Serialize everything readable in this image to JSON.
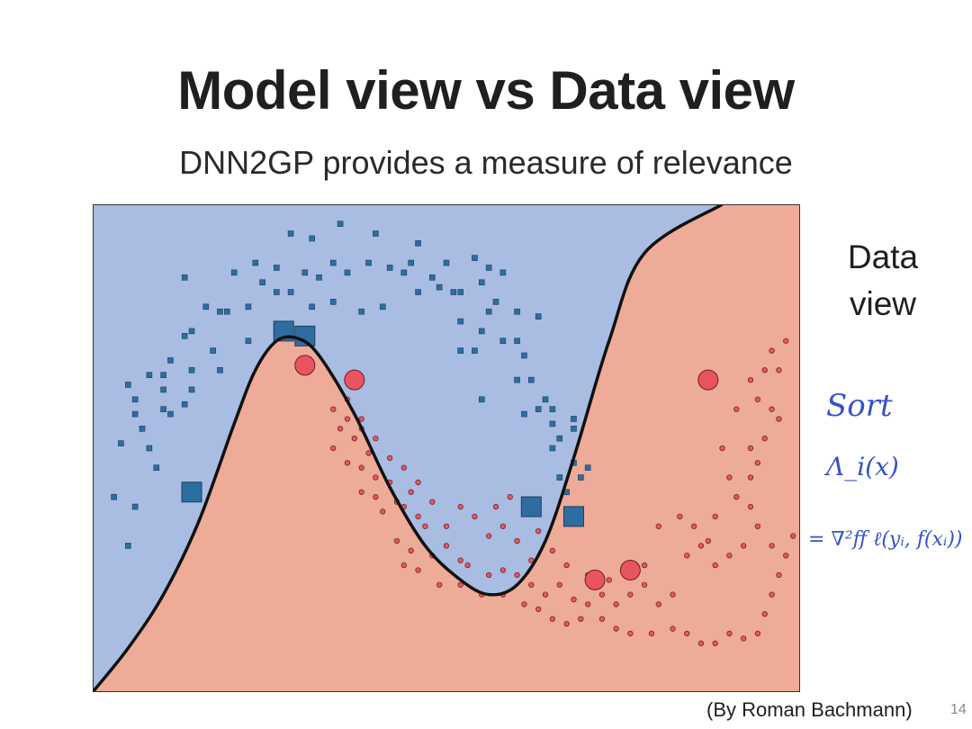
{
  "slide": {
    "title": "Model view vs Data view",
    "subtitle": "DNN2GP provides a measure of relevance",
    "side_label_line1": "Data",
    "side_label_line2": "view",
    "credit": "(By Roman Bachmann)",
    "page_number": "14"
  },
  "handwriting": {
    "line1": "Sort",
    "line2": "Λ_i(x)",
    "line3": "= ∇²ff ℓ(yᵢ, f(xᵢ))",
    "color": "#3552c8"
  },
  "chart_data": {
    "type": "scatter",
    "title": "",
    "xlabel": "",
    "ylabel": "",
    "xlim": [
      0,
      1
    ],
    "ylim": [
      0,
      1
    ],
    "grid": false,
    "colors": {
      "region_blue": "#a9bde3",
      "region_red": "#eeab97",
      "blue_point": "#2e6da0",
      "red_point": "#e8545f",
      "boundary": "#111111"
    },
    "boundary": [
      [
        0.0,
        0.0
      ],
      [
        0.05,
        0.09
      ],
      [
        0.1,
        0.2
      ],
      [
        0.15,
        0.35
      ],
      [
        0.2,
        0.55
      ],
      [
        0.23,
        0.66
      ],
      [
        0.26,
        0.72
      ],
      [
        0.29,
        0.725
      ],
      [
        0.32,
        0.69
      ],
      [
        0.37,
        0.57
      ],
      [
        0.42,
        0.42
      ],
      [
        0.47,
        0.3
      ],
      [
        0.52,
        0.23
      ],
      [
        0.56,
        0.2
      ],
      [
        0.6,
        0.22
      ],
      [
        0.64,
        0.31
      ],
      [
        0.68,
        0.48
      ],
      [
        0.73,
        0.72
      ],
      [
        0.78,
        0.9
      ],
      [
        0.89,
        1.0
      ]
    ],
    "series": [
      {
        "marker": "small-square",
        "color": "#2e6da0",
        "points": [
          [
            0.28,
            0.94
          ],
          [
            0.31,
            0.93
          ],
          [
            0.35,
            0.96
          ],
          [
            0.4,
            0.94
          ],
          [
            0.46,
            0.92
          ],
          [
            0.23,
            0.88
          ],
          [
            0.26,
            0.87
          ],
          [
            0.3,
            0.86
          ],
          [
            0.34,
            0.88
          ],
          [
            0.39,
            0.88
          ],
          [
            0.42,
            0.87
          ],
          [
            0.45,
            0.88
          ],
          [
            0.5,
            0.88
          ],
          [
            0.54,
            0.89
          ],
          [
            0.56,
            0.87
          ],
          [
            0.58,
            0.86
          ],
          [
            0.2,
            0.86
          ],
          [
            0.24,
            0.84
          ],
          [
            0.32,
            0.85
          ],
          [
            0.36,
            0.86
          ],
          [
            0.44,
            0.86
          ],
          [
            0.48,
            0.85
          ],
          [
            0.51,
            0.82
          ],
          [
            0.55,
            0.84
          ],
          [
            0.22,
            0.79
          ],
          [
            0.26,
            0.82
          ],
          [
            0.28,
            0.82
          ],
          [
            0.31,
            0.79
          ],
          [
            0.34,
            0.8
          ],
          [
            0.38,
            0.78
          ],
          [
            0.41,
            0.79
          ],
          [
            0.46,
            0.82
          ],
          [
            0.49,
            0.83
          ],
          [
            0.52,
            0.82
          ],
          [
            0.57,
            0.8
          ],
          [
            0.13,
            0.85
          ],
          [
            0.16,
            0.79
          ],
          [
            0.18,
            0.78
          ],
          [
            0.19,
            0.78
          ],
          [
            0.14,
            0.74
          ],
          [
            0.13,
            0.73
          ],
          [
            0.22,
            0.72
          ],
          [
            0.17,
            0.7
          ],
          [
            0.11,
            0.68
          ],
          [
            0.14,
            0.66
          ],
          [
            0.18,
            0.66
          ],
          [
            0.08,
            0.65
          ],
          [
            0.1,
            0.65
          ],
          [
            0.05,
            0.63
          ],
          [
            0.1,
            0.62
          ],
          [
            0.14,
            0.62
          ],
          [
            0.06,
            0.6
          ],
          [
            0.1,
            0.58
          ],
          [
            0.13,
            0.59
          ],
          [
            0.11,
            0.57
          ],
          [
            0.06,
            0.57
          ],
          [
            0.04,
            0.51
          ],
          [
            0.07,
            0.54
          ],
          [
            0.08,
            0.5
          ],
          [
            0.09,
            0.46
          ],
          [
            0.06,
            0.38
          ],
          [
            0.03,
            0.4
          ],
          [
            0.05,
            0.3
          ],
          [
            0.56,
            0.78
          ],
          [
            0.6,
            0.78
          ],
          [
            0.63,
            0.77
          ],
          [
            0.52,
            0.76
          ],
          [
            0.55,
            0.74
          ],
          [
            0.58,
            0.72
          ],
          [
            0.52,
            0.7
          ],
          [
            0.54,
            0.7
          ],
          [
            0.6,
            0.72
          ],
          [
            0.61,
            0.69
          ],
          [
            0.6,
            0.64
          ],
          [
            0.62,
            0.64
          ],
          [
            0.55,
            0.6
          ],
          [
            0.64,
            0.6
          ],
          [
            0.65,
            0.58
          ],
          [
            0.63,
            0.58
          ],
          [
            0.61,
            0.57
          ],
          [
            0.65,
            0.55
          ],
          [
            0.66,
            0.52
          ],
          [
            0.68,
            0.56
          ],
          [
            0.68,
            0.54
          ],
          [
            0.65,
            0.5
          ],
          [
            0.68,
            0.47
          ],
          [
            0.69,
            0.44
          ],
          [
            0.7,
            0.46
          ],
          [
            0.66,
            0.44
          ],
          [
            0.67,
            0.41
          ]
        ]
      },
      {
        "marker": "small-circle",
        "color": "#e8545f",
        "points": [
          [
            0.34,
            0.58
          ],
          [
            0.36,
            0.56
          ],
          [
            0.38,
            0.56
          ],
          [
            0.35,
            0.54
          ],
          [
            0.37,
            0.52
          ],
          [
            0.34,
            0.5
          ],
          [
            0.39,
            0.49
          ],
          [
            0.38,
            0.46
          ],
          [
            0.36,
            0.47
          ],
          [
            0.4,
            0.44
          ],
          [
            0.42,
            0.43
          ],
          [
            0.45,
            0.41
          ],
          [
            0.43,
            0.39
          ],
          [
            0.4,
            0.4
          ],
          [
            0.41,
            0.37
          ],
          [
            0.38,
            0.41
          ],
          [
            0.44,
            0.38
          ],
          [
            0.46,
            0.36
          ],
          [
            0.47,
            0.34
          ],
          [
            0.43,
            0.31
          ],
          [
            0.45,
            0.29
          ],
          [
            0.48,
            0.28
          ],
          [
            0.44,
            0.26
          ],
          [
            0.46,
            0.25
          ],
          [
            0.5,
            0.3
          ],
          [
            0.52,
            0.27
          ],
          [
            0.53,
            0.26
          ],
          [
            0.49,
            0.22
          ],
          [
            0.52,
            0.22
          ],
          [
            0.55,
            0.2
          ],
          [
            0.56,
            0.24
          ],
          [
            0.58,
            0.25
          ],
          [
            0.6,
            0.24
          ],
          [
            0.62,
            0.22
          ],
          [
            0.58,
            0.2
          ],
          [
            0.61,
            0.18
          ],
          [
            0.63,
            0.17
          ],
          [
            0.65,
            0.15
          ],
          [
            0.67,
            0.14
          ],
          [
            0.69,
            0.15
          ],
          [
            0.72,
            0.15
          ],
          [
            0.74,
            0.13
          ],
          [
            0.76,
            0.12
          ],
          [
            0.79,
            0.12
          ],
          [
            0.82,
            0.13
          ],
          [
            0.84,
            0.12
          ],
          [
            0.86,
            0.1
          ],
          [
            0.88,
            0.1
          ],
          [
            0.9,
            0.12
          ],
          [
            0.92,
            0.11
          ],
          [
            0.94,
            0.12
          ],
          [
            0.95,
            0.16
          ],
          [
            0.96,
            0.2
          ],
          [
            0.97,
            0.24
          ],
          [
            0.98,
            0.28
          ],
          [
            0.99,
            0.32
          ],
          [
            0.96,
            0.3
          ],
          [
            0.94,
            0.34
          ],
          [
            0.93,
            0.38
          ],
          [
            0.92,
            0.3
          ],
          [
            0.9,
            0.28
          ],
          [
            0.88,
            0.26
          ],
          [
            0.86,
            0.3
          ],
          [
            0.84,
            0.28
          ],
          [
            0.82,
            0.2
          ],
          [
            0.8,
            0.18
          ],
          [
            0.78,
            0.22
          ],
          [
            0.76,
            0.2
          ],
          [
            0.74,
            0.18
          ],
          [
            0.72,
            0.2
          ],
          [
            0.7,
            0.18
          ],
          [
            0.68,
            0.19
          ],
          [
            0.66,
            0.22
          ],
          [
            0.64,
            0.2
          ],
          [
            0.62,
            0.27
          ],
          [
            0.6,
            0.31
          ],
          [
            0.58,
            0.34
          ],
          [
            0.56,
            0.32
          ],
          [
            0.54,
            0.36
          ],
          [
            0.52,
            0.38
          ],
          [
            0.5,
            0.34
          ],
          [
            0.48,
            0.39
          ],
          [
            0.46,
            0.43
          ],
          [
            0.44,
            0.46
          ],
          [
            0.42,
            0.48
          ],
          [
            0.4,
            0.52
          ],
          [
            0.38,
            0.54
          ],
          [
            0.36,
            0.6
          ],
          [
            0.93,
            0.5
          ],
          [
            0.95,
            0.52
          ],
          [
            0.97,
            0.56
          ],
          [
            0.96,
            0.58
          ],
          [
            0.94,
            0.6
          ],
          [
            0.93,
            0.64
          ],
          [
            0.95,
            0.66
          ],
          [
            0.96,
            0.7
          ],
          [
            0.98,
            0.72
          ],
          [
            0.97,
            0.66
          ],
          [
            0.91,
            0.58
          ],
          [
            0.89,
            0.5
          ],
          [
            0.9,
            0.44
          ],
          [
            0.91,
            0.4
          ],
          [
            0.93,
            0.44
          ],
          [
            0.94,
            0.47
          ],
          [
            0.88,
            0.36
          ],
          [
            0.87,
            0.31
          ],
          [
            0.85,
            0.34
          ],
          [
            0.83,
            0.36
          ],
          [
            0.8,
            0.34
          ],
          [
            0.78,
            0.26
          ],
          [
            0.75,
            0.25
          ],
          [
            0.73,
            0.23
          ],
          [
            0.7,
            0.24
          ],
          [
            0.67,
            0.26
          ],
          [
            0.65,
            0.29
          ],
          [
            0.63,
            0.33
          ],
          [
            0.61,
            0.37
          ],
          [
            0.59,
            0.4
          ],
          [
            0.57,
            0.38
          ]
        ]
      },
      {
        "marker": "large-square",
        "color": "#2e6da0",
        "points": [
          [
            0.27,
            0.74
          ],
          [
            0.3,
            0.73
          ],
          [
            0.14,
            0.41
          ],
          [
            0.62,
            0.38
          ],
          [
            0.68,
            0.36
          ]
        ]
      },
      {
        "marker": "large-circle",
        "color": "#e8545f",
        "points": [
          [
            0.3,
            0.67
          ],
          [
            0.37,
            0.64
          ],
          [
            0.87,
            0.64
          ],
          [
            0.71,
            0.23
          ],
          [
            0.76,
            0.25
          ]
        ]
      }
    ]
  }
}
